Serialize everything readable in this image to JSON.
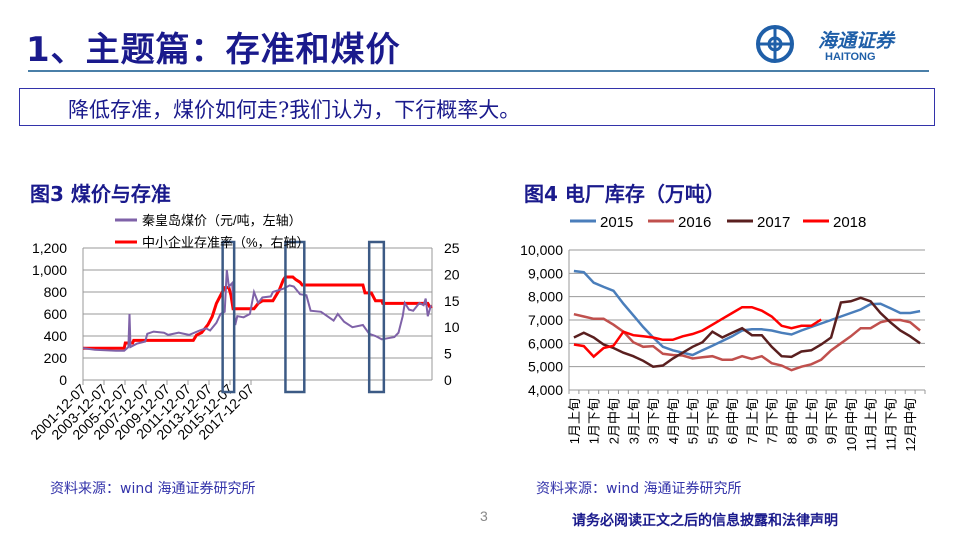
{
  "header": {
    "title": "1、主题篇：存准和煤价",
    "logo_cn": "海通证券",
    "logo_en": "HAITONG"
  },
  "callout": "降低存准，煤价如何走?我们认为，下行概率大。",
  "footer": {
    "page": "3",
    "disclaimer": "请务必阅读正文之后的信息披露和法律声明"
  },
  "colors": {
    "coal": "#7f62a8",
    "rrr": "#ff0000",
    "box": "#3c5a85",
    "s2015": "#4a7ebb",
    "s2016": "#c0504d",
    "s2017": "#5a1f1f",
    "s2018": "#ff0000"
  },
  "chart_data": [
    {
      "type": "line",
      "title": "图3 煤价与存准",
      "source": "资料来源：wind  海通证券研究所",
      "legend": [
        "秦皇岛煤价（元/吨，左轴）",
        "中小企业存准率（%，右轴）"
      ],
      "ylim_left": [
        0,
        1200
      ],
      "yticks_left": [
        "0",
        "200",
        "400",
        "600",
        "800",
        "1,000",
        "1,200"
      ],
      "ylim_right": [
        0,
        25
      ],
      "yticks_right": [
        "0",
        "5",
        "10",
        "15",
        "20",
        "25"
      ],
      "xlim": [
        2001.93,
        2018.6
      ],
      "xticks": [
        "2001-12-07",
        "2003-12-07",
        "2005-12-07",
        "2007-12-07",
        "2009-12-07",
        "2011-12-07",
        "2013-12-07",
        "2015-12-07",
        "2017-12-07"
      ],
      "highlight_ranges": [
        [
          2008.6,
          2009.15
        ],
        [
          2011.6,
          2012.5
        ],
        [
          2015.6,
          2016.3
        ]
      ],
      "series": [
        {
          "name": "秦皇岛煤价",
          "axis": "left",
          "points": [
            [
              2001.93,
              290
            ],
            [
              2002.5,
              275
            ],
            [
              2003,
              270
            ],
            [
              2003.5,
              265
            ],
            [
              2003.9,
              265
            ],
            [
              2004.1,
              300
            ],
            [
              2004.15,
              600
            ],
            [
              2004.2,
              300
            ],
            [
              2004.5,
              330
            ],
            [
              2004.9,
              350
            ],
            [
              2005.0,
              420
            ],
            [
              2005.3,
              440
            ],
            [
              2005.8,
              430
            ],
            [
              2006.0,
              410
            ],
            [
              2006.5,
              430
            ],
            [
              2007.0,
              410
            ],
            [
              2007.5,
              450
            ],
            [
              2007.8,
              470
            ],
            [
              2008.0,
              450
            ],
            [
              2008.3,
              520
            ],
            [
              2008.5,
              600
            ],
            [
              2008.7,
              620
            ],
            [
              2008.8,
              1000
            ],
            [
              2008.9,
              850
            ],
            [
              2009.05,
              880
            ],
            [
              2009.2,
              500
            ],
            [
              2009.3,
              580
            ],
            [
              2009.6,
              570
            ],
            [
              2009.9,
              600
            ],
            [
              2010.1,
              800
            ],
            [
              2010.3,
              700
            ],
            [
              2010.5,
              750
            ],
            [
              2010.9,
              760
            ],
            [
              2011.0,
              800
            ],
            [
              2011.5,
              830
            ],
            [
              2011.8,
              860
            ],
            [
              2012.0,
              850
            ],
            [
              2012.3,
              780
            ],
            [
              2012.6,
              770
            ],
            [
              2012.8,
              630
            ],
            [
              2013.3,
              620
            ],
            [
              2013.6,
              580
            ],
            [
              2013.9,
              540
            ],
            [
              2014.1,
              600
            ],
            [
              2014.4,
              530
            ],
            [
              2014.8,
              480
            ],
            [
              2015.3,
              500
            ],
            [
              2015.6,
              420
            ],
            [
              2015.9,
              400
            ],
            [
              2016.2,
              370
            ],
            [
              2016.5,
              380
            ],
            [
              2016.8,
              390
            ],
            [
              2017.0,
              430
            ],
            [
              2017.2,
              580
            ],
            [
              2017.3,
              700
            ],
            [
              2017.5,
              640
            ],
            [
              2017.7,
              630
            ],
            [
              2018.0,
              700
            ],
            [
              2018.2,
              680
            ],
            [
              2018.3,
              740
            ],
            [
              2018.4,
              580
            ],
            [
              2018.55,
              680
            ]
          ]
        },
        {
          "name": "中小企业存准率",
          "axis": "right",
          "points": [
            [
              2001.93,
              6
            ],
            [
              2003.9,
              6
            ],
            [
              2003.95,
              7
            ],
            [
              2004.3,
              7
            ],
            [
              2004.35,
              7.5
            ],
            [
              2007.2,
              7.5
            ],
            [
              2007.35,
              8.5
            ],
            [
              2007.6,
              9
            ],
            [
              2007.9,
              10.5
            ],
            [
              2008.1,
              12
            ],
            [
              2008.3,
              14.5
            ],
            [
              2008.5,
              16
            ],
            [
              2008.7,
              17.5
            ],
            [
              2008.9,
              17.5
            ],
            [
              2009.0,
              16
            ],
            [
              2009.1,
              13.5
            ],
            [
              2010.1,
              13.5
            ],
            [
              2010.3,
              14.5
            ],
            [
              2010.5,
              15
            ],
            [
              2011.0,
              15
            ],
            [
              2011.3,
              17
            ],
            [
              2011.5,
              19
            ],
            [
              2011.6,
              19.5
            ],
            [
              2011.95,
              19.5
            ],
            [
              2012.1,
              19
            ],
            [
              2012.3,
              18.5
            ],
            [
              2012.4,
              18
            ],
            [
              2015.3,
              18
            ],
            [
              2015.4,
              16.5
            ],
            [
              2015.7,
              16.5
            ],
            [
              2015.9,
              15
            ],
            [
              2016.2,
              15
            ],
            [
              2016.25,
              14.5
            ],
            [
              2018.4,
              14.5
            ],
            [
              2018.5,
              13.8
            ],
            [
              2018.6,
              14
            ]
          ]
        }
      ]
    },
    {
      "type": "line",
      "title": "图4  电厂库存（万吨）",
      "source": "资料来源：wind  海通证券研究所",
      "ylim": [
        4000,
        10000
      ],
      "yticks": [
        "4,000",
        "5,000",
        "6,000",
        "7,000",
        "8,000",
        "9,000",
        "10,000"
      ],
      "n_periods": 36,
      "xticks": [
        "1月上旬",
        "1月下旬",
        "2月中旬",
        "3月上旬",
        "3月下旬",
        "4月中旬",
        "5月上旬",
        "5月下旬",
        "6月中旬",
        "7月上旬",
        "7月下旬",
        "8月中旬",
        "9月上旬",
        "9月下旬",
        "10月中旬",
        "11月上旬",
        "11月下旬",
        "12月中旬"
      ],
      "series": [
        {
          "name": "2015",
          "values": [
            9100,
            9050,
            8600,
            8420,
            8250,
            7700,
            7200,
            6700,
            6250,
            5850,
            5700,
            5600,
            5500,
            5700,
            5900,
            6100,
            6300,
            6550,
            6600,
            6600,
            6550,
            6450,
            6380,
            6550,
            6700,
            6850,
            7000,
            7150,
            7300,
            7450,
            7680,
            7700,
            7500,
            7300,
            7300,
            7380
          ]
        },
        {
          "name": "2016",
          "values": [
            7250,
            7150,
            7050,
            7050,
            6800,
            6500,
            6050,
            5850,
            5880,
            5550,
            5500,
            5480,
            5350,
            5400,
            5450,
            5300,
            5300,
            5450,
            5330,
            5450,
            5150,
            5050,
            4850,
            5000,
            5100,
            5300,
            5700,
            6000,
            6300,
            6650,
            6650,
            6900,
            7000,
            7000,
            6900,
            6550
          ]
        },
        {
          "name": "2017",
          "values": [
            6250,
            6450,
            6250,
            5950,
            5800,
            5600,
            5450,
            5250,
            5000,
            5050,
            5350,
            5600,
            5850,
            6050,
            6500,
            6250,
            6450,
            6650,
            6350,
            6350,
            5850,
            5450,
            5420,
            5650,
            5700,
            5950,
            6250,
            7750,
            7800,
            7950,
            7800,
            7300,
            6900,
            6550,
            6300,
            6000
          ]
        },
        {
          "name": "2018",
          "values": [
            5950,
            5880,
            5430,
            5800,
            5900,
            6500,
            6350,
            6300,
            6250,
            6150,
            6150,
            6300,
            6400,
            6550,
            6800,
            7050,
            7300,
            7550,
            7550,
            7400,
            7150,
            6750,
            6650,
            6750,
            6750,
            7020
          ]
        }
      ]
    }
  ]
}
